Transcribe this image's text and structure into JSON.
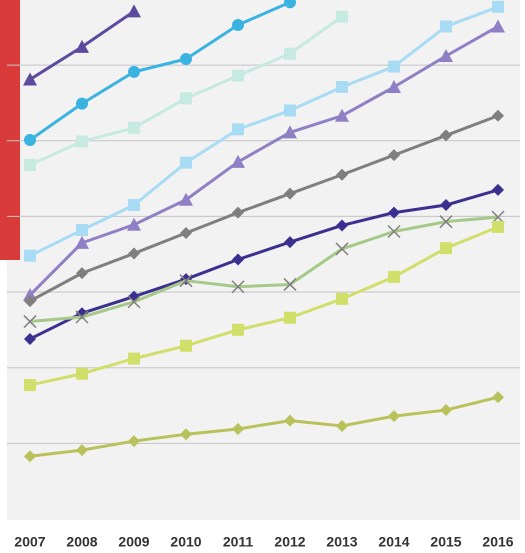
{
  "chart_data": {
    "type": "line",
    "categories": [
      "2007",
      "2008",
      "2009",
      "2010",
      "2011",
      "2012",
      "2013",
      "2014",
      "2015",
      "2016"
    ],
    "ylim": [
      0,
      6.86
    ],
    "yticks": [
      1,
      2,
      3,
      4,
      5,
      6
    ],
    "grid": true,
    "series": [
      {
        "color": "#5b4a9e",
        "marker": "triangle",
        "values": [
          5.81,
          6.24,
          6.71,
          null,
          null,
          null,
          null,
          null,
          null,
          null
        ]
      },
      {
        "color": "#3bb3e0",
        "marker": "circle",
        "values": [
          5.01,
          5.49,
          5.91,
          6.08,
          6.53,
          6.83,
          null,
          null,
          null,
          null
        ]
      },
      {
        "color": "#c6eadf",
        "marker": "square",
        "values": [
          4.68,
          4.99,
          5.17,
          5.56,
          5.86,
          6.15,
          6.64,
          null,
          null,
          null
        ]
      },
      {
        "color": "#a8dcf5",
        "marker": "square",
        "values": [
          3.48,
          3.82,
          4.15,
          4.71,
          5.15,
          5.4,
          5.71,
          5.98,
          6.51,
          6.77
        ]
      },
      {
        "color": "#8f7fc4",
        "marker": "triangle",
        "values": [
          2.96,
          3.65,
          3.89,
          4.22,
          4.72,
          5.11,
          5.33,
          5.71,
          6.12,
          6.51
        ]
      },
      {
        "color": "#7f7f7f",
        "marker": "diamond",
        "values": [
          2.88,
          3.25,
          3.51,
          3.78,
          4.05,
          4.3,
          4.55,
          4.81,
          5.07,
          5.33
        ]
      },
      {
        "color": "#3b2f8f",
        "marker": "diamond",
        "values": [
          2.38,
          2.72,
          2.94,
          3.17,
          3.43,
          3.66,
          3.88,
          4.05,
          4.15,
          4.35
        ]
      },
      {
        "color": "#a6c98a",
        "marker": "x",
        "values": [
          2.61,
          2.67,
          2.87,
          3.15,
          3.07,
          3.1,
          3.57,
          3.8,
          3.93,
          3.99
        ]
      },
      {
        "color": "#d0df6a",
        "marker": "square",
        "values": [
          1.77,
          1.92,
          2.12,
          2.29,
          2.5,
          2.66,
          2.91,
          3.2,
          3.58,
          3.86
        ]
      },
      {
        "color": "#b9c25a",
        "marker": "diamond",
        "values": [
          0.83,
          0.91,
          1.03,
          1.12,
          1.19,
          1.3,
          1.23,
          1.36,
          1.44,
          1.61
        ]
      }
    ]
  }
}
